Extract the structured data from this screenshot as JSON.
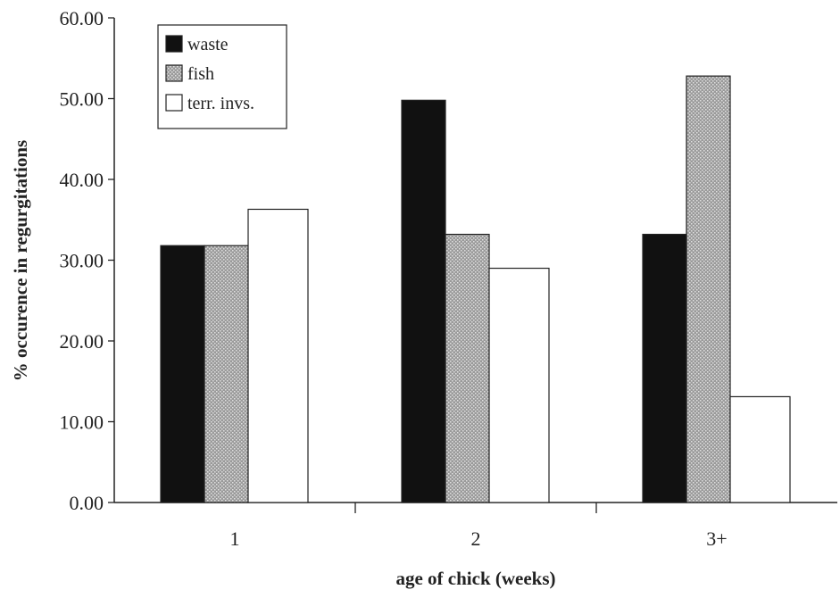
{
  "chart_data": {
    "type": "bar",
    "title": "",
    "xlabel": "age of chick (weeks)",
    "ylabel": "% occurence in regurgitations",
    "ylim": [
      0,
      60
    ],
    "yticks": [
      "0.00",
      "10.00",
      "20.00",
      "30.00",
      "40.00",
      "50.00",
      "60.00"
    ],
    "categories": [
      "1",
      "2",
      "3+"
    ],
    "series": [
      {
        "name": "waste",
        "values": [
          31.8,
          49.8,
          33.2
        ],
        "fill": "#111111"
      },
      {
        "name": "fish",
        "values": [
          31.8,
          33.2,
          52.8
        ],
        "fill": "#a9a9a9"
      },
      {
        "name": "terr. invs.",
        "values": [
          36.3,
          29.0,
          13.1
        ],
        "fill": "#ffffff"
      }
    ],
    "legend_position": "top-left",
    "grid": false
  }
}
